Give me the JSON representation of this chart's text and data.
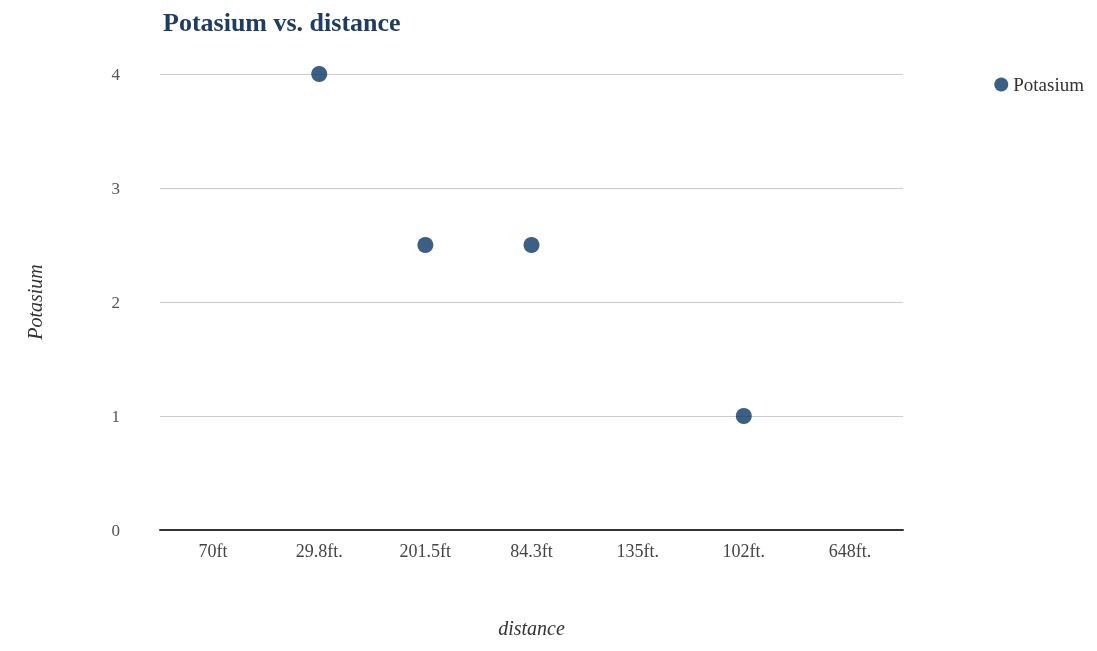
{
  "chart_data": {
    "type": "scatter",
    "title": "Potasium vs. distance",
    "xlabel": "distance",
    "ylabel": "Potasium",
    "categories": [
      "70ft",
      "29.8ft.",
      "201.5ft",
      "84.3ft",
      "135ft.",
      "102ft.",
      "648ft."
    ],
    "series": [
      {
        "name": "Potasium",
        "color": "#0b3866",
        "values": [
          null,
          4,
          2.5,
          2.5,
          null,
          1,
          null
        ]
      }
    ],
    "ylim": [
      0,
      4
    ],
    "yticks": [
      0,
      1,
      2,
      3,
      4
    ],
    "grid": "y",
    "legend": "top right",
    "marker": "circle"
  }
}
